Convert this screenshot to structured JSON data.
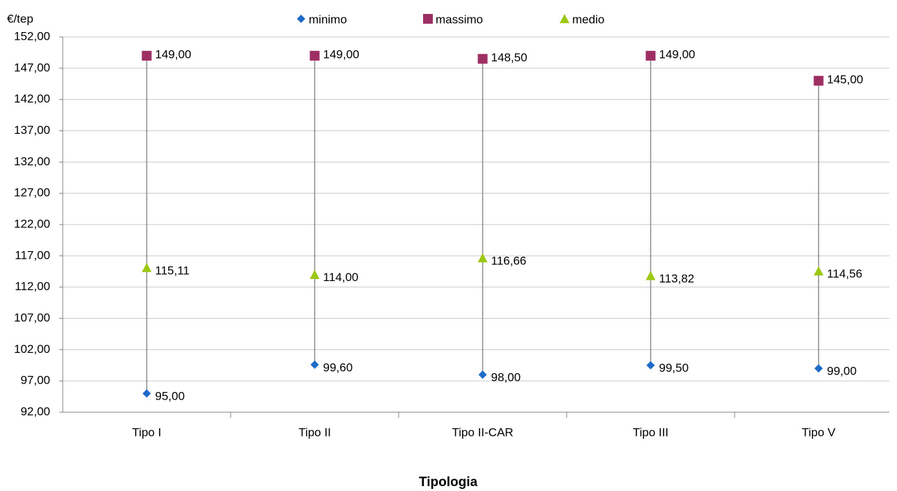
{
  "chart_data": {
    "type": "hilo",
    "y_label": "€/tep",
    "x_label": "Tipologia",
    "categories": [
      "Tipo I",
      "Tipo II",
      "Tipo II-CAR",
      "Tipo III",
      "Tipo V"
    ],
    "series": [
      {
        "name": "minimo",
        "color": "#1e6cc8",
        "marker": "diamond",
        "values": [
          95,
          99.6,
          98,
          99.5,
          99
        ],
        "value_labels": [
          "95,00",
          "99,60",
          "98,00",
          "99,50",
          "99,00"
        ]
      },
      {
        "name": "massimo",
        "color": "#9e2f63",
        "marker": "square",
        "values": [
          149,
          149,
          148.5,
          149,
          145
        ],
        "value_labels": [
          "149,00",
          "149,00",
          "148,50",
          "149,00",
          "145,00"
        ]
      },
      {
        "name": "medio",
        "color": "#9cc814",
        "marker": "triangle",
        "values": [
          115.11,
          114,
          116.66,
          113.82,
          114.56
        ],
        "value_labels": [
          "115,11",
          "114,00",
          "116,66",
          "113,82",
          "114,56"
        ]
      }
    ],
    "range_color": "#8c8c8c",
    "ylim": [
      92,
      152
    ],
    "yticks": [
      {
        "value": 92,
        "label": "92,00"
      },
      {
        "value": 97,
        "label": "97,00"
      },
      {
        "value": 102,
        "label": "102,00"
      },
      {
        "value": 107,
        "label": "107,00"
      },
      {
        "value": 112,
        "label": "112,00"
      },
      {
        "value": 117,
        "label": "117,00"
      },
      {
        "value": 122,
        "label": "122,00"
      },
      {
        "value": 127,
        "label": "127,00"
      },
      {
        "value": 132,
        "label": "132,00"
      },
      {
        "value": 137,
        "label": "137,00"
      },
      {
        "value": 142,
        "label": "142,00"
      },
      {
        "value": 147,
        "label": "147,00"
      },
      {
        "value": 152,
        "label": "152,00"
      }
    ],
    "grid": true,
    "legend": "top"
  }
}
